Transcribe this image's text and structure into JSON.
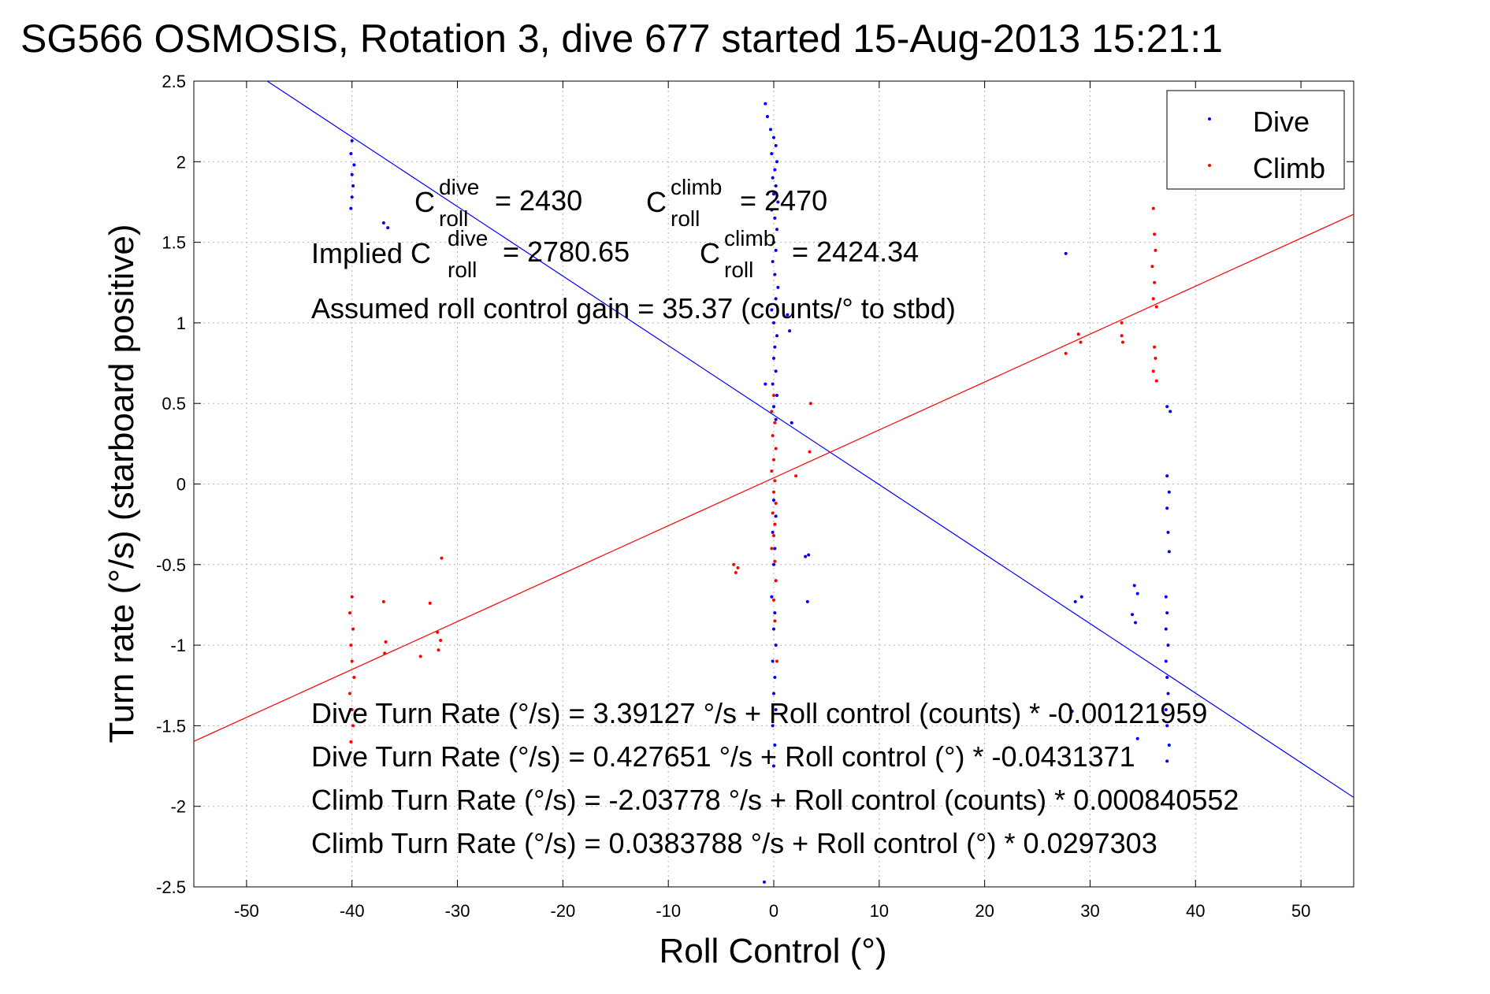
{
  "chart_data": {
    "type": "scatter",
    "title": "SG566 OSMOSIS, Rotation 3, dive 677 started 15-Aug-2013 15:21:1",
    "xlabel": "Roll Control (°)",
    "ylabel": "Turn rate (°/s) (starboard positive)",
    "xlim": [
      -55,
      55
    ],
    "ylim": [
      -2.5,
      2.5
    ],
    "xticks": [
      -50,
      -40,
      -30,
      -20,
      -10,
      0,
      10,
      20,
      30,
      40,
      50
    ],
    "yticks": [
      -2.5,
      -2,
      -1.5,
      -1,
      -0.5,
      0,
      0.5,
      1,
      1.5,
      2,
      2.5
    ],
    "grid": true,
    "legend_position": "top-right",
    "colors": {
      "dive": "#0000ff",
      "climb": "#ff0000"
    },
    "series": [
      {
        "name": "Dive",
        "color": "#0000ff",
        "points": [
          [
            -40.0,
            2.13
          ],
          [
            -40.1,
            2.05
          ],
          [
            -39.8,
            1.98
          ],
          [
            -40.0,
            1.92
          ],
          [
            -39.9,
            1.85
          ],
          [
            -40.0,
            1.78
          ],
          [
            -40.1,
            1.71
          ],
          [
            -37.0,
            1.62
          ],
          [
            -36.6,
            1.59
          ],
          [
            -0.8,
            2.36
          ],
          [
            -0.6,
            2.28
          ],
          [
            -0.3,
            2.2
          ],
          [
            0.0,
            2.15
          ],
          [
            0.2,
            2.1
          ],
          [
            -0.2,
            2.05
          ],
          [
            0.3,
            2.0
          ],
          [
            0.1,
            1.95
          ],
          [
            -0.1,
            1.9
          ],
          [
            0.2,
            1.85
          ],
          [
            0.0,
            1.8
          ],
          [
            0.4,
            1.75
          ],
          [
            -0.2,
            1.7
          ],
          [
            0.1,
            1.65
          ],
          [
            0.3,
            1.58
          ],
          [
            0.0,
            1.5
          ],
          [
            0.2,
            1.45
          ],
          [
            -0.1,
            1.38
          ],
          [
            0.1,
            1.3
          ],
          [
            0.4,
            1.22
          ],
          [
            0.2,
            1.15
          ],
          [
            -0.2,
            1.08
          ],
          [
            0.0,
            1.0
          ],
          [
            0.3,
            0.92
          ],
          [
            0.1,
            0.85
          ],
          [
            0.0,
            0.78
          ],
          [
            0.2,
            0.7
          ],
          [
            -0.1,
            0.62
          ],
          [
            0.3,
            0.55
          ],
          [
            0.0,
            0.48
          ],
          [
            0.2,
            0.4
          ],
          [
            1.5,
            0.95
          ],
          [
            1.3,
            1.05
          ],
          [
            -0.8,
            0.62
          ],
          [
            1.7,
            0.38
          ],
          [
            0.0,
            -0.1
          ],
          [
            0.2,
            -0.2
          ],
          [
            -0.1,
            -0.3
          ],
          [
            0.1,
            -0.4
          ],
          [
            0.0,
            -0.5
          ],
          [
            0.2,
            -0.6
          ],
          [
            -0.2,
            -0.7
          ],
          [
            0.1,
            -0.8
          ],
          [
            0.0,
            -0.9
          ],
          [
            0.2,
            -1.0
          ],
          [
            -0.1,
            -1.1
          ],
          [
            0.1,
            -1.2
          ],
          [
            0.0,
            -1.3
          ],
          [
            0.2,
            -1.4
          ],
          [
            -0.1,
            -1.5
          ],
          [
            0.1,
            -1.62
          ],
          [
            0.0,
            -1.75
          ],
          [
            -0.9,
            -2.47
          ],
          [
            3.0,
            -0.45
          ],
          [
            3.3,
            -0.44
          ],
          [
            3.2,
            -0.73
          ],
          [
            27.7,
            1.43
          ],
          [
            28.6,
            -0.73
          ],
          [
            29.2,
            -0.7
          ],
          [
            28.3,
            -1.41
          ],
          [
            34.2,
            -0.63
          ],
          [
            34.5,
            -0.68
          ],
          [
            34.0,
            -0.81
          ],
          [
            34.3,
            -0.86
          ],
          [
            37.3,
            0.48
          ],
          [
            37.6,
            0.45
          ],
          [
            37.3,
            0.05
          ],
          [
            37.5,
            -0.05
          ],
          [
            37.3,
            -0.15
          ],
          [
            37.4,
            -0.3
          ],
          [
            37.5,
            -0.42
          ],
          [
            37.2,
            -0.7
          ],
          [
            37.3,
            -0.8
          ],
          [
            37.2,
            -0.9
          ],
          [
            37.4,
            -1.0
          ],
          [
            37.2,
            -1.1
          ],
          [
            37.3,
            -1.2
          ],
          [
            37.4,
            -1.3
          ],
          [
            37.2,
            -1.4
          ],
          [
            37.3,
            -1.5
          ],
          [
            37.5,
            -1.62
          ],
          [
            37.3,
            -1.72
          ],
          [
            34.5,
            -1.58
          ]
        ]
      },
      {
        "name": "Climb",
        "color": "#ff0000",
        "points": [
          [
            -40.0,
            -0.7
          ],
          [
            -40.2,
            -0.8
          ],
          [
            -39.9,
            -0.9
          ],
          [
            -40.1,
            -1.0
          ],
          [
            -40.0,
            -1.1
          ],
          [
            -39.8,
            -1.2
          ],
          [
            -40.2,
            -1.3
          ],
          [
            -40.0,
            -1.4
          ],
          [
            -39.9,
            -1.5
          ],
          [
            -40.1,
            -1.6
          ],
          [
            -37.0,
            -0.73
          ],
          [
            -36.8,
            -0.98
          ],
          [
            -36.9,
            -1.05
          ],
          [
            -33.5,
            -1.07
          ],
          [
            -32.6,
            -0.74
          ],
          [
            -31.9,
            -0.92
          ],
          [
            -31.6,
            -0.97
          ],
          [
            -31.8,
            -1.03
          ],
          [
            -31.5,
            -0.46
          ],
          [
            -3.8,
            -0.5
          ],
          [
            -3.6,
            -0.55
          ],
          [
            -3.4,
            -0.52
          ],
          [
            0.0,
            0.55
          ],
          [
            -0.2,
            0.45
          ],
          [
            0.1,
            0.38
          ],
          [
            -0.1,
            0.3
          ],
          [
            0.2,
            0.22
          ],
          [
            0.0,
            0.15
          ],
          [
            -0.2,
            0.08
          ],
          [
            0.1,
            0.02
          ],
          [
            0.0,
            -0.05
          ],
          [
            0.2,
            -0.12
          ],
          [
            -0.1,
            -0.18
          ],
          [
            0.1,
            -0.25
          ],
          [
            0.0,
            -0.32
          ],
          [
            -0.2,
            -0.4
          ],
          [
            0.1,
            -0.48
          ],
          [
            0.2,
            -0.6
          ],
          [
            0.0,
            -0.72
          ],
          [
            0.1,
            -0.85
          ],
          [
            0.3,
            -1.1
          ],
          [
            3.5,
            0.5
          ],
          [
            3.4,
            0.2
          ],
          [
            2.1,
            0.05
          ],
          [
            27.7,
            0.81
          ],
          [
            28.9,
            0.93
          ],
          [
            29.1,
            0.88
          ],
          [
            33.0,
            1.0
          ],
          [
            33.0,
            0.92
          ],
          [
            33.1,
            0.88
          ],
          [
            36.0,
            1.71
          ],
          [
            36.1,
            1.55
          ],
          [
            36.2,
            1.45
          ],
          [
            35.9,
            1.35
          ],
          [
            36.1,
            1.25
          ],
          [
            36.0,
            1.15
          ],
          [
            36.3,
            1.1
          ],
          [
            36.1,
            0.85
          ],
          [
            36.2,
            0.78
          ],
          [
            36.0,
            0.7
          ],
          [
            36.3,
            0.64
          ]
        ]
      }
    ],
    "fit_lines": [
      {
        "name": "Dive",
        "color": "#0000ff",
        "intercept": 0.427651,
        "slope": -0.0431371
      },
      {
        "name": "Climb",
        "color": "#ff0000",
        "intercept": 0.0383788,
        "slope": 0.0297303
      }
    ],
    "annotations": {
      "c_roll_dive": {
        "base": "C",
        "sup": "dive",
        "sub": "roll",
        "value": "= 2430"
      },
      "c_roll_climb": {
        "base": "C",
        "sup": "climb",
        "sub": "roll",
        "value": "= 2470"
      },
      "implied_prefix": "Implied C",
      "implied_dive": {
        "sup": "dive",
        "sub": "roll",
        "value": "= 2780.65"
      },
      "implied_climb": {
        "base": "C",
        "sup": "climb",
        "sub": "roll",
        "value": "= 2424.34"
      },
      "gain": "Assumed roll control gain = 35.37 (counts/° to stbd)",
      "equations": [
        "Dive Turn Rate (°/s) = 3.39127 °/s + Roll control (counts) * -0.00121959",
        "Dive Turn Rate (°/s) = 0.427651 °/s + Roll control (°) * -0.0431371",
        "Climb Turn Rate (°/s) = -2.03778 °/s + Roll control (counts) * 0.000840552",
        "Climb Turn Rate (°/s) = 0.0383788 °/s + Roll control (°) * 0.0297303"
      ]
    }
  }
}
